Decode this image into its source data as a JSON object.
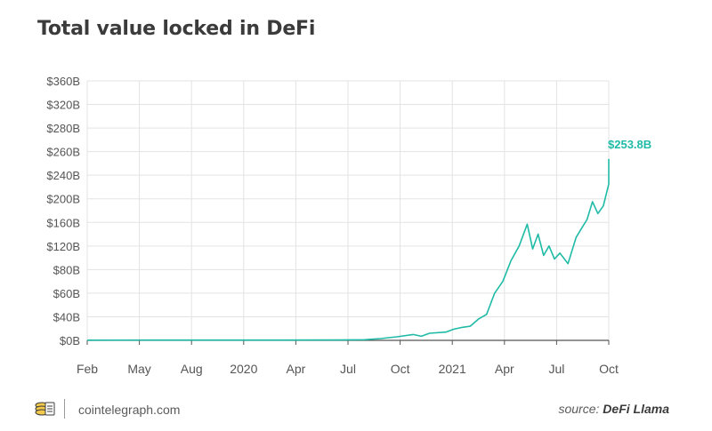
{
  "header": {
    "title": "Total value locked in DeFi"
  },
  "footer": {
    "site": "cointelegraph.com",
    "source_prefix": "source: ",
    "source_name": "DeFi Llama"
  },
  "colors": {
    "line": "#1fbba6",
    "grid": "#e3e3e3",
    "axis": "#555555",
    "text": "#3b3b3b"
  },
  "chart_data": {
    "type": "line",
    "title": "Total value locked in DeFi",
    "xlabel": "",
    "ylabel": "",
    "x_tick_labels": [
      "Feb",
      "May",
      "Aug",
      "2020",
      "Apr",
      "Jul",
      "Oct",
      "2021",
      "Apr",
      "Jul",
      "Oct"
    ],
    "y_tick_labels": [
      "$0B",
      "$40B",
      "$60B",
      "$80B",
      "$120B",
      "$160B",
      "$200B",
      "$240B",
      "$260B",
      "$280B",
      "$320B",
      "$360B"
    ],
    "x_range": [
      "2019-02",
      "2021-10"
    ],
    "grid": true,
    "end_label": "$253.8B",
    "series": [
      {
        "values": [
          {
            "x": "2019-02",
            "y": 0.3
          },
          {
            "x": "2019-06",
            "y": 0.4
          },
          {
            "x": "2019-10",
            "y": 0.4
          },
          {
            "x": "2020-02",
            "y": 0.5
          },
          {
            "x": "2020-05",
            "y": 0.6
          },
          {
            "x": "2020-07",
            "y": 1.0
          },
          {
            "x": "2020-08",
            "y": 3.0
          },
          {
            "x": "2020-09",
            "y": 6.0
          },
          {
            "x": "2020-10",
            "y": 10.0
          },
          {
            "x": "2020-10",
            "y": 7.0
          },
          {
            "x": "2020-11",
            "y": 12.0
          },
          {
            "x": "2020-12",
            "y": 14.0
          },
          {
            "x": "2020-12",
            "y": 19.0
          },
          {
            "x": "2021-01",
            "y": 22.0
          },
          {
            "x": "2021-01",
            "y": 24.0
          },
          {
            "x": "2021-02",
            "y": 36.0
          },
          {
            "x": "2021-02",
            "y": 42.0
          },
          {
            "x": "2021-03",
            "y": 60.0
          },
          {
            "x": "2021-03",
            "y": 70.0
          },
          {
            "x": "2021-04",
            "y": 95.0
          },
          {
            "x": "2021-04",
            "y": 120.0
          },
          {
            "x": "2021-05",
            "y": 157.0
          },
          {
            "x": "2021-05",
            "y": 115.0
          },
          {
            "x": "2021-05",
            "y": 140.0
          },
          {
            "x": "2021-06",
            "y": 104.0
          },
          {
            "x": "2021-06",
            "y": 120.0
          },
          {
            "x": "2021-06",
            "y": 98.0
          },
          {
            "x": "2021-07",
            "y": 108.0
          },
          {
            "x": "2021-07",
            "y": 90.0
          },
          {
            "x": "2021-08",
            "y": 135.0
          },
          {
            "x": "2021-08",
            "y": 150.0
          },
          {
            "x": "2021-08",
            "y": 165.0
          },
          {
            "x": "2021-09",
            "y": 195.0
          },
          {
            "x": "2021-09",
            "y": 175.0
          },
          {
            "x": "2021-09",
            "y": 188.0
          },
          {
            "x": "2021-10",
            "y": 225.0
          },
          {
            "x": "2021-10",
            "y": 245.0
          },
          {
            "x": "2021-10",
            "y": 253.8
          }
        ]
      }
    ]
  }
}
